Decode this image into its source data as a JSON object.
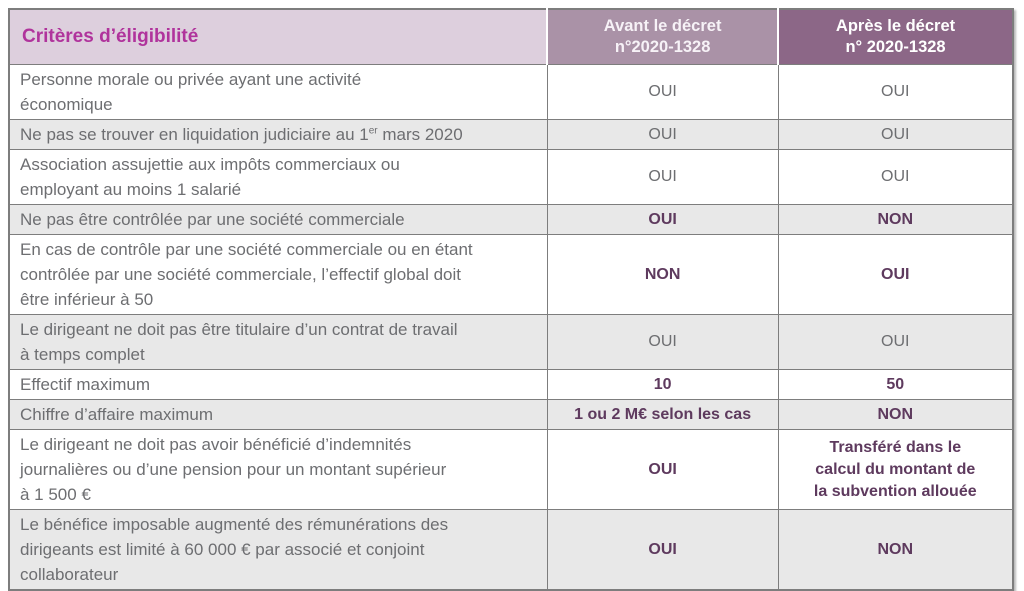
{
  "colors": {
    "title_magenta": "#b0339c",
    "criteria_header_bg": "#ddcfdd",
    "header_avant_bg": "#aa92a7",
    "header_apres_bg": "#8c6787",
    "stripe_bg": "#e8e8e8",
    "body_text": "#6d6e71",
    "emphasis_text": "#5e3a5e",
    "border": "#7d7d7d"
  },
  "table": {
    "header": {
      "criteria_label": "Critères d’éligibilité",
      "avant_label": "Avant le décret\nn°2020-1328",
      "apres_label": "Après le décret\nn° 2020-1328"
    },
    "rows": [
      {
        "criteria": "Personne morale ou privée ayant une activité\néconomique",
        "avant": "OUI",
        "apres": "OUI",
        "emphasis": false
      },
      {
        "criteria_parts": {
          "before": "Ne pas se trouver en liquidation judiciaire au 1",
          "sup": "er",
          "after": " mars 2020"
        },
        "avant": "OUI",
        "apres": "OUI",
        "emphasis": false
      },
      {
        "criteria": "Association assujettie aux impôts commerciaux ou\nemployant au moins 1 salarié",
        "avant": "OUI",
        "apres": "OUI",
        "emphasis": false
      },
      {
        "criteria": "Ne pas être contrôlée par une société commerciale",
        "avant": "OUI",
        "apres": "NON",
        "emphasis": true
      },
      {
        "criteria": "En cas de contrôle par une société commerciale ou en étant\ncontrôlée par une société commerciale, l’effectif global doit\nêtre inférieur à 50",
        "avant": "NON",
        "apres": "OUI",
        "emphasis": true
      },
      {
        "criteria": "Le dirigeant ne doit pas être titulaire d’un contrat de travail\nà temps complet",
        "avant": "OUI",
        "apres": "OUI",
        "emphasis": false
      },
      {
        "criteria": "Effectif maximum",
        "avant": "10",
        "apres": "50",
        "emphasis": true
      },
      {
        "criteria": "Chiffre d’affaire maximum",
        "avant": "1 ou 2 M€ selon les cas",
        "apres": "NON",
        "emphasis": true
      },
      {
        "criteria": "Le dirigeant ne doit pas avoir bénéficié d’indemnités\njournalières ou d’une pension pour un montant supérieur\nà 1 500 €",
        "avant": "OUI",
        "apres": "Transféré dans le\ncalcul du montant de\nla subvention allouée",
        "emphasis": true
      },
      {
        "criteria": "Le bénéfice imposable augmenté des rémunérations des\ndirigeants est limité à 60 000 € par associé et conjoint\ncollaborateur",
        "avant": "OUI",
        "apres": "NON",
        "emphasis": true
      }
    ]
  }
}
